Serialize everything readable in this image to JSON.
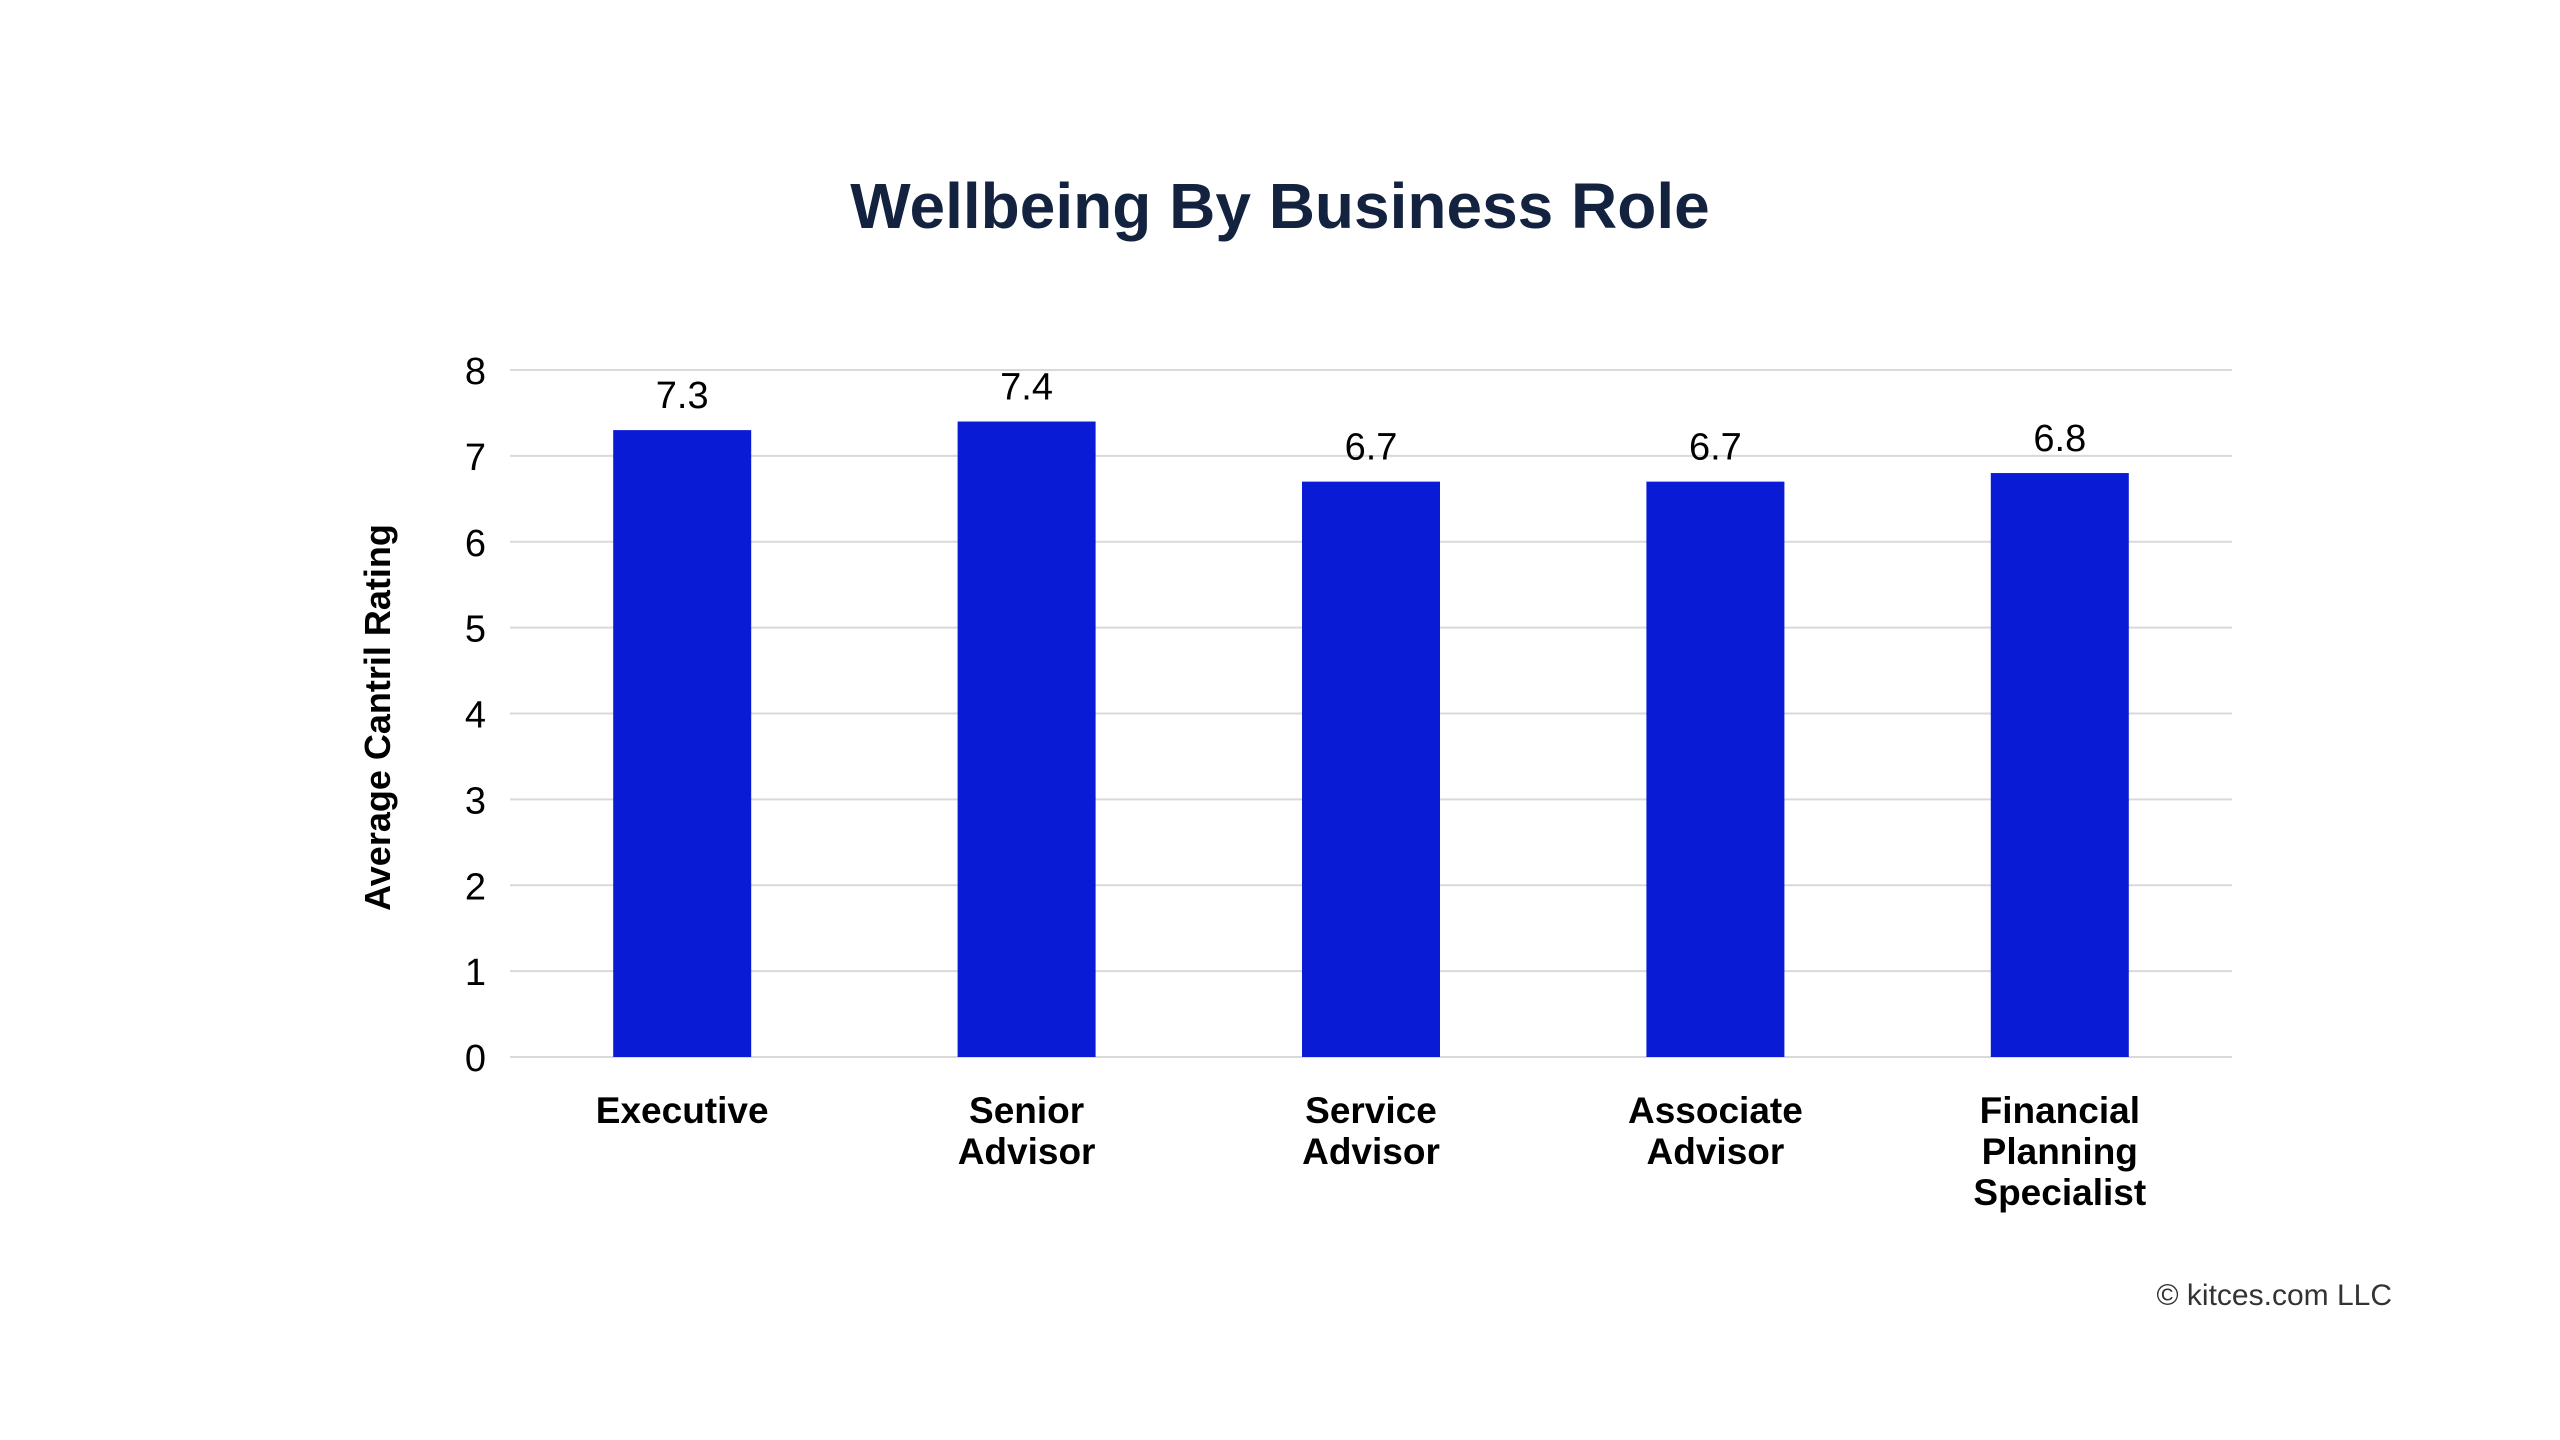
{
  "chart_data": {
    "type": "bar",
    "title": "Wellbeing By Business Role",
    "xlabel": "",
    "ylabel": "Average Cantril Rating",
    "categories": [
      [
        "Executive"
      ],
      [
        "Senior",
        "Advisor"
      ],
      [
        "Service",
        "Advisor"
      ],
      [
        "Associate",
        "Advisor"
      ],
      [
        "Financial",
        "Planning",
        "Specialist"
      ]
    ],
    "values": [
      7.3,
      7.4,
      6.7,
      6.7,
      6.8
    ],
    "data_labels": [
      "7.3",
      "7.4",
      "6.7",
      "6.7",
      "6.8"
    ],
    "ylim": [
      0,
      8
    ],
    "yticks": [
      0,
      1,
      2,
      3,
      4,
      5,
      6,
      7,
      8
    ],
    "grid": true,
    "legend": "none",
    "colors": {
      "bar": "#0a1bd6",
      "title": "#13233f",
      "grid": "#d9d9d9",
      "text": "#000000",
      "copyright": "#333333"
    }
  },
  "footer": {
    "copyright": "© kitces.com LLC"
  }
}
